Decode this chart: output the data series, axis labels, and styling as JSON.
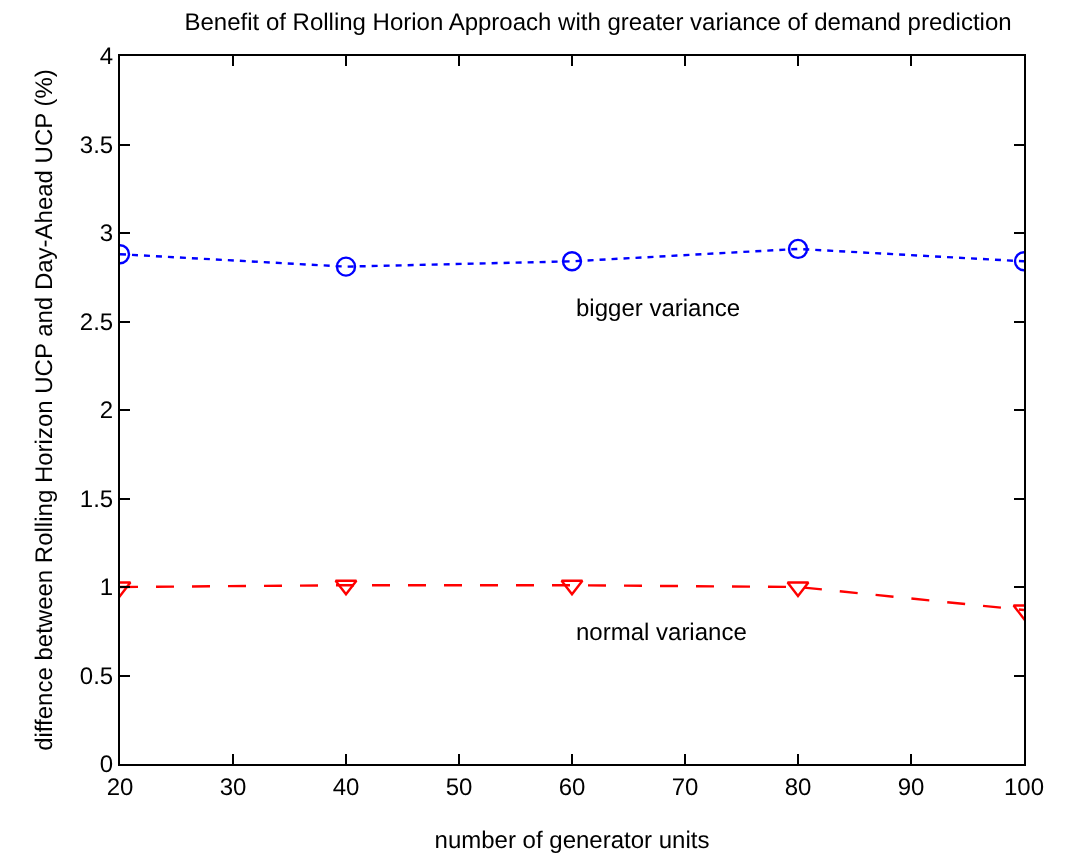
{
  "chart_data": {
    "type": "line",
    "title": "Benefit of Rolling Horion Approach with greater variance of demand prediction",
    "xlabel": "number of generator units",
    "ylabel": "diffence between Rolling Horizon UCP and Day-Ahead UCP (%)",
    "x": [
      20,
      40,
      60,
      80,
      100
    ],
    "series": [
      {
        "name": "bigger variance",
        "color": "#0000ff",
        "values": [
          2.88,
          2.81,
          2.84,
          2.91,
          2.84
        ],
        "marker": "circle",
        "line_style": "dotted"
      },
      {
        "name": "normal variance",
        "color": "#ff0000",
        "values": [
          1.0,
          1.01,
          1.01,
          1.0,
          0.87
        ],
        "marker": "triangle",
        "line_style": "dashed"
      }
    ],
    "xlim": [
      20,
      100
    ],
    "xticks": [
      20,
      30,
      40,
      50,
      60,
      70,
      80,
      90,
      100
    ],
    "ylim": [
      0,
      4
    ],
    "yticks": [
      0,
      0.5,
      1,
      1.5,
      2,
      2.5,
      3,
      3.5,
      4
    ],
    "grid": false,
    "legend": false
  }
}
